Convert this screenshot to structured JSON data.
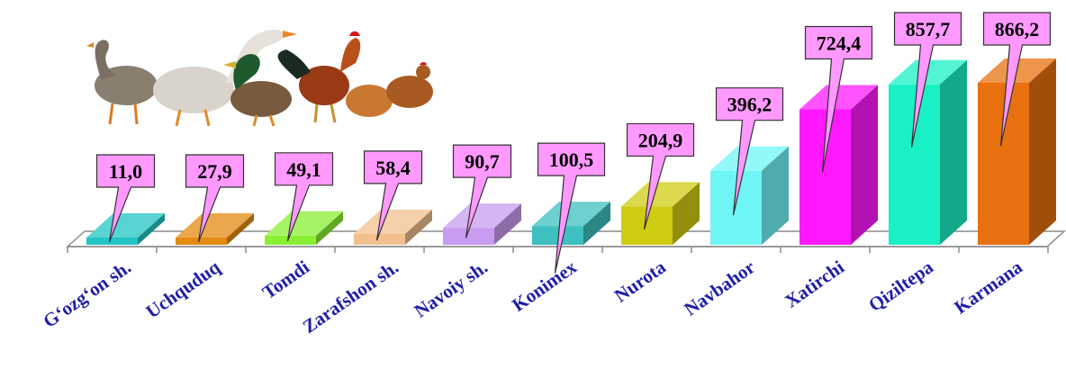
{
  "chart_data": {
    "type": "bar",
    "style": "3d-column",
    "title": "",
    "xlabel": "",
    "ylabel": "",
    "categories": [
      "G‘ozg‘on sh.",
      "Uchquduq",
      "Tomdi",
      "Zarafshon sh.",
      "Navoiy sh.",
      "Konimex",
      "Nurota",
      "Navbahor",
      "Xatirchi",
      "Qiziltepa",
      "Karmana"
    ],
    "values": [
      11.0,
      27.9,
      49.1,
      58.4,
      90.7,
      100.5,
      204.9,
      396.2,
      724.4,
      857.7,
      866.2
    ],
    "value_labels": [
      "11,0",
      "27,9",
      "49,1",
      "58,4",
      "90,7",
      "100,5",
      "204,9",
      "396,2",
      "724,4",
      "857,7",
      "866,2"
    ],
    "colors": [
      "#22c4c4",
      "#e38a10",
      "#8aef33",
      "#f2c08e",
      "#c89cf0",
      "#3ec0c0",
      "#cfcc12",
      "#6ff5f5",
      "#ff19ff",
      "#19f0c4",
      "#e8700f"
    ],
    "label_callout_color": "#ff99ff",
    "grid": false,
    "legend": "none",
    "decoration": "poultry-illustration"
  }
}
